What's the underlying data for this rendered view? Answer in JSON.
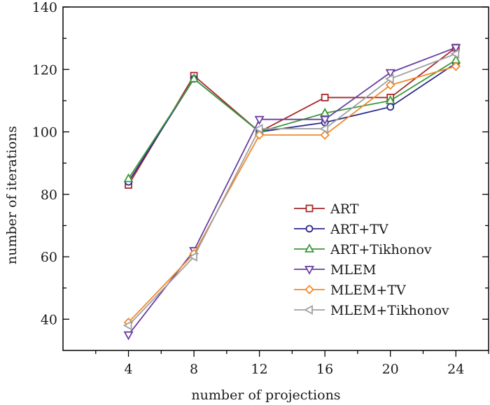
{
  "chart_data": {
    "type": "line",
    "xlabel": "number of projections",
    "ylabel": "number of iterations",
    "x": [
      4,
      8,
      12,
      16,
      20,
      24
    ],
    "xlim": [
      0,
      26
    ],
    "ylim": [
      30,
      140
    ],
    "xticks": [
      4,
      8,
      12,
      16,
      20,
      24
    ],
    "yticks": [
      40,
      60,
      80,
      100,
      120,
      140
    ],
    "grid": false,
    "legend_position": "bottom-right",
    "series": [
      {
        "name": "ART",
        "color": "#a52a2a",
        "marker": "square",
        "values": [
          83,
          118,
          100,
          111,
          111,
          127
        ]
      },
      {
        "name": "ART+TV",
        "color": "#2b2a8c",
        "marker": "circle",
        "values": [
          84,
          117,
          100,
          103,
          108,
          122
        ]
      },
      {
        "name": "ART+Tikhonov",
        "color": "#3a9a3a",
        "marker": "triangle-up",
        "values": [
          85,
          117,
          100,
          106,
          110,
          123
        ]
      },
      {
        "name": "MLEM",
        "color": "#6a3fa0",
        "marker": "triangle-down",
        "values": [
          35,
          62,
          104,
          104,
          119,
          127
        ]
      },
      {
        "name": "MLEM+TV",
        "color": "#f08a2a",
        "marker": "diamond",
        "values": [
          39,
          61,
          99,
          99,
          115,
          121
        ]
      },
      {
        "name": "MLEM+Tikhonov",
        "color": "#a0a0a0",
        "marker": "triangle-left",
        "values": [
          38,
          60,
          101,
          101,
          117,
          125
        ]
      }
    ]
  }
}
